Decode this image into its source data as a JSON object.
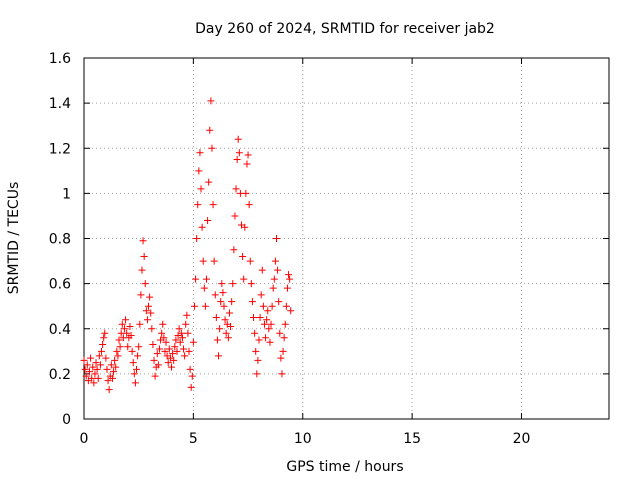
{
  "chart_data": {
    "type": "scatter",
    "title": "Day 260 of 2024, SRMTID for receiver jab2",
    "xlabel": "GPS time / hours",
    "ylabel": "SRMTID / TECUs",
    "xlim": [
      0,
      24
    ],
    "ylim": [
      0,
      1.6
    ],
    "xticks": [
      0,
      5,
      10,
      15,
      20
    ],
    "yticks": [
      0,
      0.2,
      0.4,
      0.6,
      0.8,
      1,
      1.2,
      1.4,
      1.6
    ],
    "xtick_labels": [
      "0",
      "5",
      "10",
      "15",
      "20"
    ],
    "ytick_labels": [
      "0",
      "0.2",
      "0.4",
      "0.6",
      "0.8",
      "1",
      "1.2",
      "1.4",
      "1.6"
    ],
    "grid": true,
    "marker": "+",
    "series": [
      {
        "name": "jab2",
        "color": "#ff0000",
        "points": [
          [
            0.0,
            0.26
          ],
          [
            0.05,
            0.22
          ],
          [
            0.1,
            0.19
          ],
          [
            0.15,
            0.24
          ],
          [
            0.2,
            0.17
          ],
          [
            0.25,
            0.21
          ],
          [
            0.3,
            0.27
          ],
          [
            0.35,
            0.18
          ],
          [
            0.4,
            0.23
          ],
          [
            0.45,
            0.16
          ],
          [
            0.5,
            0.2
          ],
          [
            0.55,
            0.25
          ],
          [
            0.6,
            0.22
          ],
          [
            0.65,
            0.18
          ],
          [
            0.7,
            0.28
          ],
          [
            0.75,
            0.24
          ],
          [
            0.8,
            0.3
          ],
          [
            0.85,
            0.33
          ],
          [
            0.9,
            0.36
          ],
          [
            0.95,
            0.38
          ],
          [
            1.0,
            0.27
          ],
          [
            1.05,
            0.22
          ],
          [
            1.1,
            0.17
          ],
          [
            1.15,
            0.13
          ],
          [
            1.2,
            0.19
          ],
          [
            1.25,
            0.24
          ],
          [
            1.3,
            0.18
          ],
          [
            1.35,
            0.21
          ],
          [
            1.4,
            0.26
          ],
          [
            1.45,
            0.23
          ],
          [
            1.5,
            0.3
          ],
          [
            1.55,
            0.28
          ],
          [
            1.6,
            0.35
          ],
          [
            1.65,
            0.32
          ],
          [
            1.7,
            0.38
          ],
          [
            1.75,
            0.42
          ],
          [
            1.8,
            0.36
          ],
          [
            1.85,
            0.4
          ],
          [
            1.9,
            0.44
          ],
          [
            1.95,
            0.38
          ],
          [
            2.0,
            0.32
          ],
          [
            2.05,
            0.36
          ],
          [
            2.1,
            0.41
          ],
          [
            2.15,
            0.37
          ],
          [
            2.2,
            0.3
          ],
          [
            2.25,
            0.25
          ],
          [
            2.3,
            0.2
          ],
          [
            2.35,
            0.16
          ],
          [
            2.4,
            0.22
          ],
          [
            2.45,
            0.28
          ],
          [
            2.5,
            0.32
          ],
          [
            2.55,
            0.42
          ],
          [
            2.6,
            0.55
          ],
          [
            2.65,
            0.66
          ],
          [
            2.7,
            0.79
          ],
          [
            2.75,
            0.72
          ],
          [
            2.8,
            0.6
          ],
          [
            2.85,
            0.48
          ],
          [
            2.9,
            0.44
          ],
          [
            2.95,
            0.5
          ],
          [
            3.0,
            0.54
          ],
          [
            3.05,
            0.47
          ],
          [
            3.1,
            0.4
          ],
          [
            3.15,
            0.33
          ],
          [
            3.2,
            0.26
          ],
          [
            3.25,
            0.19
          ],
          [
            3.3,
            0.23
          ],
          [
            3.35,
            0.29
          ],
          [
            3.4,
            0.24
          ],
          [
            3.45,
            0.31
          ],
          [
            3.5,
            0.35
          ],
          [
            3.55,
            0.38
          ],
          [
            3.6,
            0.42
          ],
          [
            3.65,
            0.36
          ],
          [
            3.7,
            0.3
          ],
          [
            3.75,
            0.34
          ],
          [
            3.8,
            0.28
          ],
          [
            3.85,
            0.25
          ],
          [
            3.9,
            0.31
          ],
          [
            3.95,
            0.27
          ],
          [
            4.0,
            0.23
          ],
          [
            4.05,
            0.29
          ],
          [
            4.1,
            0.26
          ],
          [
            4.15,
            0.32
          ],
          [
            4.2,
            0.35
          ],
          [
            4.25,
            0.3
          ],
          [
            4.3,
            0.37
          ],
          [
            4.35,
            0.4
          ],
          [
            4.4,
            0.34
          ],
          [
            4.45,
            0.38
          ],
          [
            4.5,
            0.36
          ],
          [
            4.55,
            0.31
          ],
          [
            4.6,
            0.28
          ],
          [
            4.65,
            0.42
          ],
          [
            4.7,
            0.46
          ],
          [
            4.75,
            0.38
          ],
          [
            4.8,
            0.3
          ],
          [
            4.85,
            0.22
          ],
          [
            4.9,
            0.14
          ],
          [
            4.95,
            0.19
          ],
          [
            5.0,
            0.34
          ],
          [
            5.05,
            0.5
          ],
          [
            5.1,
            0.62
          ],
          [
            5.15,
            0.8
          ],
          [
            5.2,
            0.95
          ],
          [
            5.25,
            1.1
          ],
          [
            5.3,
            1.18
          ],
          [
            5.35,
            1.02
          ],
          [
            5.4,
            0.85
          ],
          [
            5.45,
            0.7
          ],
          [
            5.5,
            0.58
          ],
          [
            5.55,
            0.5
          ],
          [
            5.6,
            0.62
          ],
          [
            5.65,
            0.88
          ],
          [
            5.7,
            1.05
          ],
          [
            5.75,
            1.28
          ],
          [
            5.8,
            1.41
          ],
          [
            5.85,
            1.2
          ],
          [
            5.9,
            0.95
          ],
          [
            5.95,
            0.7
          ],
          [
            6.0,
            0.55
          ],
          [
            6.05,
            0.45
          ],
          [
            6.1,
            0.35
          ],
          [
            6.15,
            0.28
          ],
          [
            6.2,
            0.4
          ],
          [
            6.25,
            0.52
          ],
          [
            6.3,
            0.6
          ],
          [
            6.35,
            0.56
          ],
          [
            6.4,
            0.5
          ],
          [
            6.45,
            0.44
          ],
          [
            6.5,
            0.38
          ],
          [
            6.55,
            0.42
          ],
          [
            6.6,
            0.36
          ],
          [
            6.65,
            0.47
          ],
          [
            6.7,
            0.41
          ],
          [
            6.75,
            0.52
          ],
          [
            6.8,
            0.6
          ],
          [
            6.85,
            0.75
          ],
          [
            6.9,
            0.9
          ],
          [
            6.95,
            1.02
          ],
          [
            7.0,
            1.15
          ],
          [
            7.05,
            1.24
          ],
          [
            7.1,
            1.18
          ],
          [
            7.15,
            1.0
          ],
          [
            7.2,
            0.86
          ],
          [
            7.25,
            0.72
          ],
          [
            7.3,
            0.62
          ],
          [
            7.35,
            0.85
          ],
          [
            7.4,
            1.0
          ],
          [
            7.45,
            1.13
          ],
          [
            7.5,
            1.17
          ],
          [
            7.55,
            0.95
          ],
          [
            7.6,
            0.7
          ],
          [
            7.65,
            0.6
          ],
          [
            7.7,
            0.52
          ],
          [
            7.75,
            0.45
          ],
          [
            7.8,
            0.38
          ],
          [
            7.85,
            0.3
          ],
          [
            7.9,
            0.2
          ],
          [
            7.95,
            0.26
          ],
          [
            8.0,
            0.35
          ],
          [
            8.05,
            0.45
          ],
          [
            8.1,
            0.55
          ],
          [
            8.15,
            0.66
          ],
          [
            8.2,
            0.5
          ],
          [
            8.25,
            0.42
          ],
          [
            8.3,
            0.36
          ],
          [
            8.35,
            0.44
          ],
          [
            8.4,
            0.48
          ],
          [
            8.45,
            0.4
          ],
          [
            8.5,
            0.34
          ],
          [
            8.55,
            0.42
          ],
          [
            8.6,
            0.5
          ],
          [
            8.65,
            0.58
          ],
          [
            8.7,
            0.62
          ],
          [
            8.75,
            0.7
          ],
          [
            8.8,
            0.8
          ],
          [
            8.85,
            0.66
          ],
          [
            8.9,
            0.52
          ],
          [
            8.95,
            0.38
          ],
          [
            9.0,
            0.27
          ],
          [
            9.05,
            0.2
          ],
          [
            9.1,
            0.3
          ],
          [
            9.15,
            0.36
          ],
          [
            9.2,
            0.42
          ],
          [
            9.25,
            0.5
          ],
          [
            9.3,
            0.58
          ],
          [
            9.35,
            0.64
          ],
          [
            9.4,
            0.62
          ],
          [
            9.45,
            0.48
          ]
        ]
      }
    ]
  }
}
